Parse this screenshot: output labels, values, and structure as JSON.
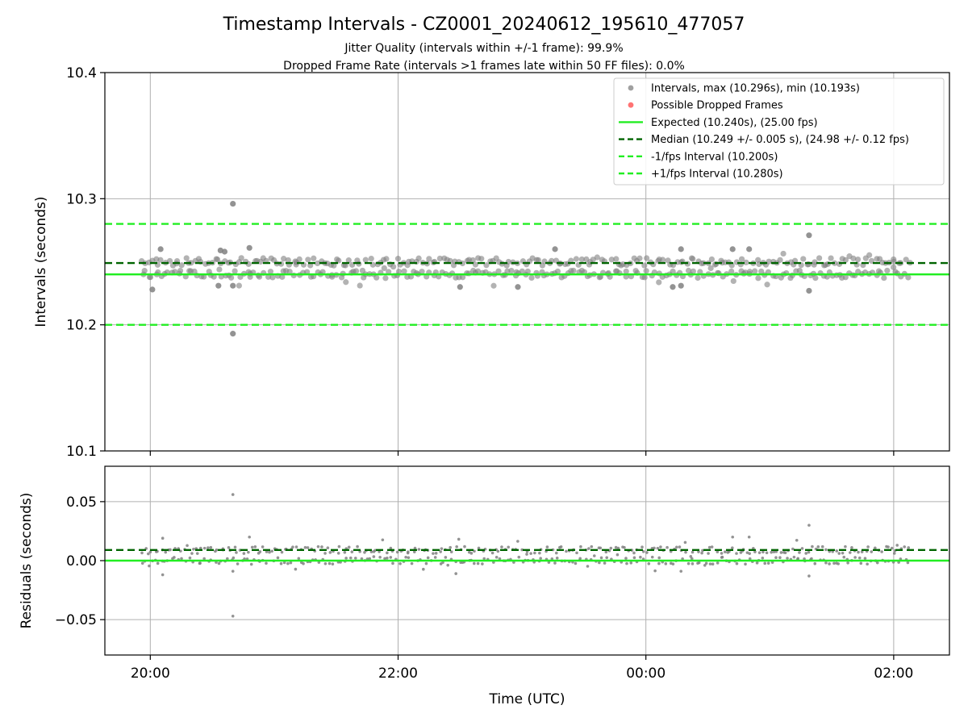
{
  "figure": {
    "title": "Timestamp Intervals - CZ0001_20240612_195610_477057",
    "subtitle_1": "Jitter Quality (intervals within +/-1 frame): 99.9%",
    "subtitle_2": "Dropped Frame Rate (intervals >1 frames late within 50 FF files): 0.0%"
  },
  "colors": {
    "points": "#808080",
    "dropped": "#ff4444",
    "expected": "#22ee22",
    "median": "#006400",
    "bounds": "#22ee22",
    "grid": "#b0b0b0"
  },
  "chart_data": [
    {
      "type": "scatter",
      "title": "",
      "xlabel": "",
      "ylabel": "Intervals (seconds)",
      "x_ticks": [
        "20:00",
        "22:00",
        "00:00",
        "02:00"
      ],
      "x_tick_times": [
        "2024-06-12 20:00",
        "2024-06-12 22:00",
        "2024-06-13 00:00",
        "2024-06-13 02:00"
      ],
      "xlim": [
        "2024-06-12 19:38",
        "2024-06-13 02:27"
      ],
      "ylim": [
        10.1,
        10.4
      ],
      "y_ticks": [
        "10.1",
        "10.2",
        "10.3",
        "10.4"
      ],
      "y_tick_values": [
        10.1,
        10.2,
        10.3,
        10.4
      ],
      "grid": true,
      "legend_position": "top-right",
      "legend": [
        {
          "label": "Intervals, max (10.296s), min (10.193s)",
          "style": "point",
          "color": "#808080"
        },
        {
          "label": "Possible Dropped Frames",
          "style": "point",
          "color": "#ff4444"
        },
        {
          "label": "Expected (10.240s), (25.00 fps)",
          "style": "solid",
          "color": "#22ee22"
        },
        {
          "label": "Median (10.249 +/- 0.005 s), (24.98 +/- 0.12 fps)",
          "style": "dashed",
          "color": "#006400"
        },
        {
          "label": "-1/fps Interval (10.200s)",
          "style": "dashed",
          "color": "#22ee22"
        },
        {
          "label": "+1/fps Interval (10.280s)",
          "style": "dashed",
          "color": "#22ee22"
        }
      ],
      "reference_lines": {
        "expected": 10.24,
        "median": 10.249,
        "minus_1fps": 10.2,
        "plus_1fps": 10.28
      },
      "series": [
        {
          "name": "Intervals",
          "summary": {
            "start": "2024-06-12 19:56",
            "end": "2024-06-13 02:08",
            "typical_levels": [
              10.24,
              10.25
            ],
            "max": 10.296,
            "min": 10.193
          },
          "outliers": [
            {
              "t": "2024-06-12 20:01",
              "y": 10.228
            },
            {
              "t": "2024-06-12 20:05",
              "y": 10.26
            },
            {
              "t": "2024-06-12 20:40",
              "y": 10.296
            },
            {
              "t": "2024-06-12 20:40",
              "y": 10.193
            },
            {
              "t": "2024-06-12 20:40",
              "y": 10.231
            },
            {
              "t": "2024-06-12 20:34",
              "y": 10.259
            },
            {
              "t": "2024-06-12 20:36",
              "y": 10.258
            },
            {
              "t": "2024-06-12 20:48",
              "y": 10.261
            },
            {
              "t": "2024-06-12 20:33",
              "y": 10.231
            },
            {
              "t": "2024-06-12 22:30",
              "y": 10.23
            },
            {
              "t": "2024-06-12 22:58",
              "y": 10.23
            },
            {
              "t": "2024-06-12 23:16",
              "y": 10.26
            },
            {
              "t": "2024-06-13 00:13",
              "y": 10.23
            },
            {
              "t": "2024-06-13 00:17",
              "y": 10.231
            },
            {
              "t": "2024-06-13 00:17",
              "y": 10.26
            },
            {
              "t": "2024-06-13 00:42",
              "y": 10.26
            },
            {
              "t": "2024-06-13 00:50",
              "y": 10.26
            },
            {
              "t": "2024-06-13 01:19",
              "y": 10.271
            },
            {
              "t": "2024-06-13 01:19",
              "y": 10.227
            }
          ]
        },
        {
          "name": "Possible Dropped Frames",
          "points": []
        }
      ]
    },
    {
      "type": "scatter",
      "title": "",
      "xlabel": "Time (UTC)",
      "ylabel": "Residuals (seconds)",
      "x_ticks": [
        "20:00",
        "22:00",
        "00:00",
        "02:00"
      ],
      "x_tick_times": [
        "2024-06-12 20:00",
        "2024-06-12 22:00",
        "2024-06-13 00:00",
        "2024-06-13 02:00"
      ],
      "xlim": [
        "2024-06-12 19:38",
        "2024-06-13 02:27"
      ],
      "ylim": [
        -0.08,
        0.08
      ],
      "y_ticks": [
        "−0.05",
        "0.00",
        "0.05"
      ],
      "y_tick_values": [
        -0.05,
        0.0,
        0.05
      ],
      "grid": true,
      "reference_lines": {
        "zero": 0.0,
        "median_residual": 0.009
      },
      "series": [
        {
          "name": "Residuals",
          "summary": {
            "start": "2024-06-12 19:56",
            "end": "2024-06-13 02:08",
            "typical_levels": [
              0.0,
              0.009
            ],
            "max": 0.056,
            "min": -0.047
          },
          "outliers": [
            {
              "t": "2024-06-12 20:40",
              "y": 0.056
            },
            {
              "t": "2024-06-12 20:40",
              "y": -0.047
            },
            {
              "t": "2024-06-12 20:06",
              "y": -0.012
            },
            {
              "t": "2024-06-12 20:40",
              "y": -0.009
            },
            {
              "t": "2024-06-12 20:06",
              "y": 0.019
            },
            {
              "t": "2024-06-13 01:19",
              "y": 0.03
            },
            {
              "t": "2024-06-13 01:19",
              "y": -0.013
            },
            {
              "t": "2024-06-12 22:28",
              "y": -0.011
            },
            {
              "t": "2024-06-13 00:17",
              "y": -0.009
            },
            {
              "t": "2024-06-13 00:42",
              "y": 0.02
            },
            {
              "t": "2024-06-13 00:50",
              "y": 0.02
            },
            {
              "t": "2024-06-12 20:48",
              "y": 0.02
            }
          ]
        }
      ]
    }
  ]
}
